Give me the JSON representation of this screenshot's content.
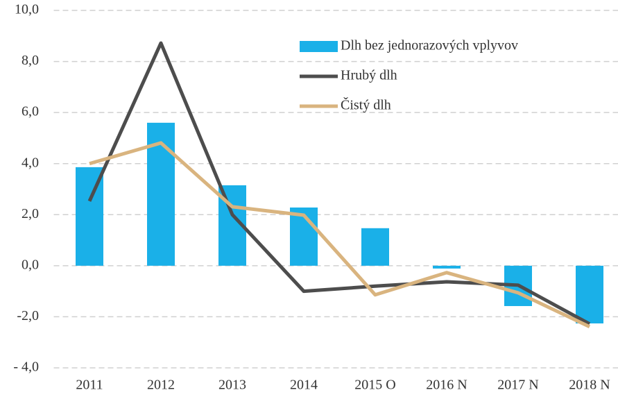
{
  "chart_data": {
    "type": "bar",
    "categories": [
      "2011",
      "2012",
      "2013",
      "2014",
      "2015 O",
      "2016 N",
      "2017 N",
      "2018 N"
    ],
    "series": [
      {
        "name": "Dlh bez jednorazových vplyvov",
        "type": "bar",
        "color": "#1ab0e8",
        "values": [
          3.86,
          5.6,
          3.15,
          2.28,
          1.47,
          -0.11,
          -1.58,
          -2.26
        ]
      },
      {
        "name": "Hrubý dlh",
        "type": "line",
        "color": "#4d4d4d",
        "values": [
          2.53,
          8.72,
          2.0,
          -1.0,
          -0.8,
          -0.63,
          -0.76,
          -2.28
        ]
      },
      {
        "name": "Čistý dlh",
        "type": "line",
        "color": "#d9b47f",
        "values": [
          4.0,
          4.81,
          2.31,
          1.98,
          -1.14,
          -0.27,
          -1.06,
          -2.39
        ]
      }
    ],
    "ylim": [
      -4,
      10
    ],
    "yticks": [
      {
        "value": -4,
        "label": "- 4,0"
      },
      {
        "value": -2,
        "label": "-2,0"
      },
      {
        "value": 0,
        "label": "0,0"
      },
      {
        "value": 2,
        "label": "2,0"
      },
      {
        "value": 4,
        "label": "4,0"
      },
      {
        "value": 6,
        "label": "6,0"
      },
      {
        "value": 8,
        "label": "8,0"
      },
      {
        "value": 10,
        "label": "10,0"
      }
    ],
    "grid": true,
    "legend": "top-right"
  }
}
